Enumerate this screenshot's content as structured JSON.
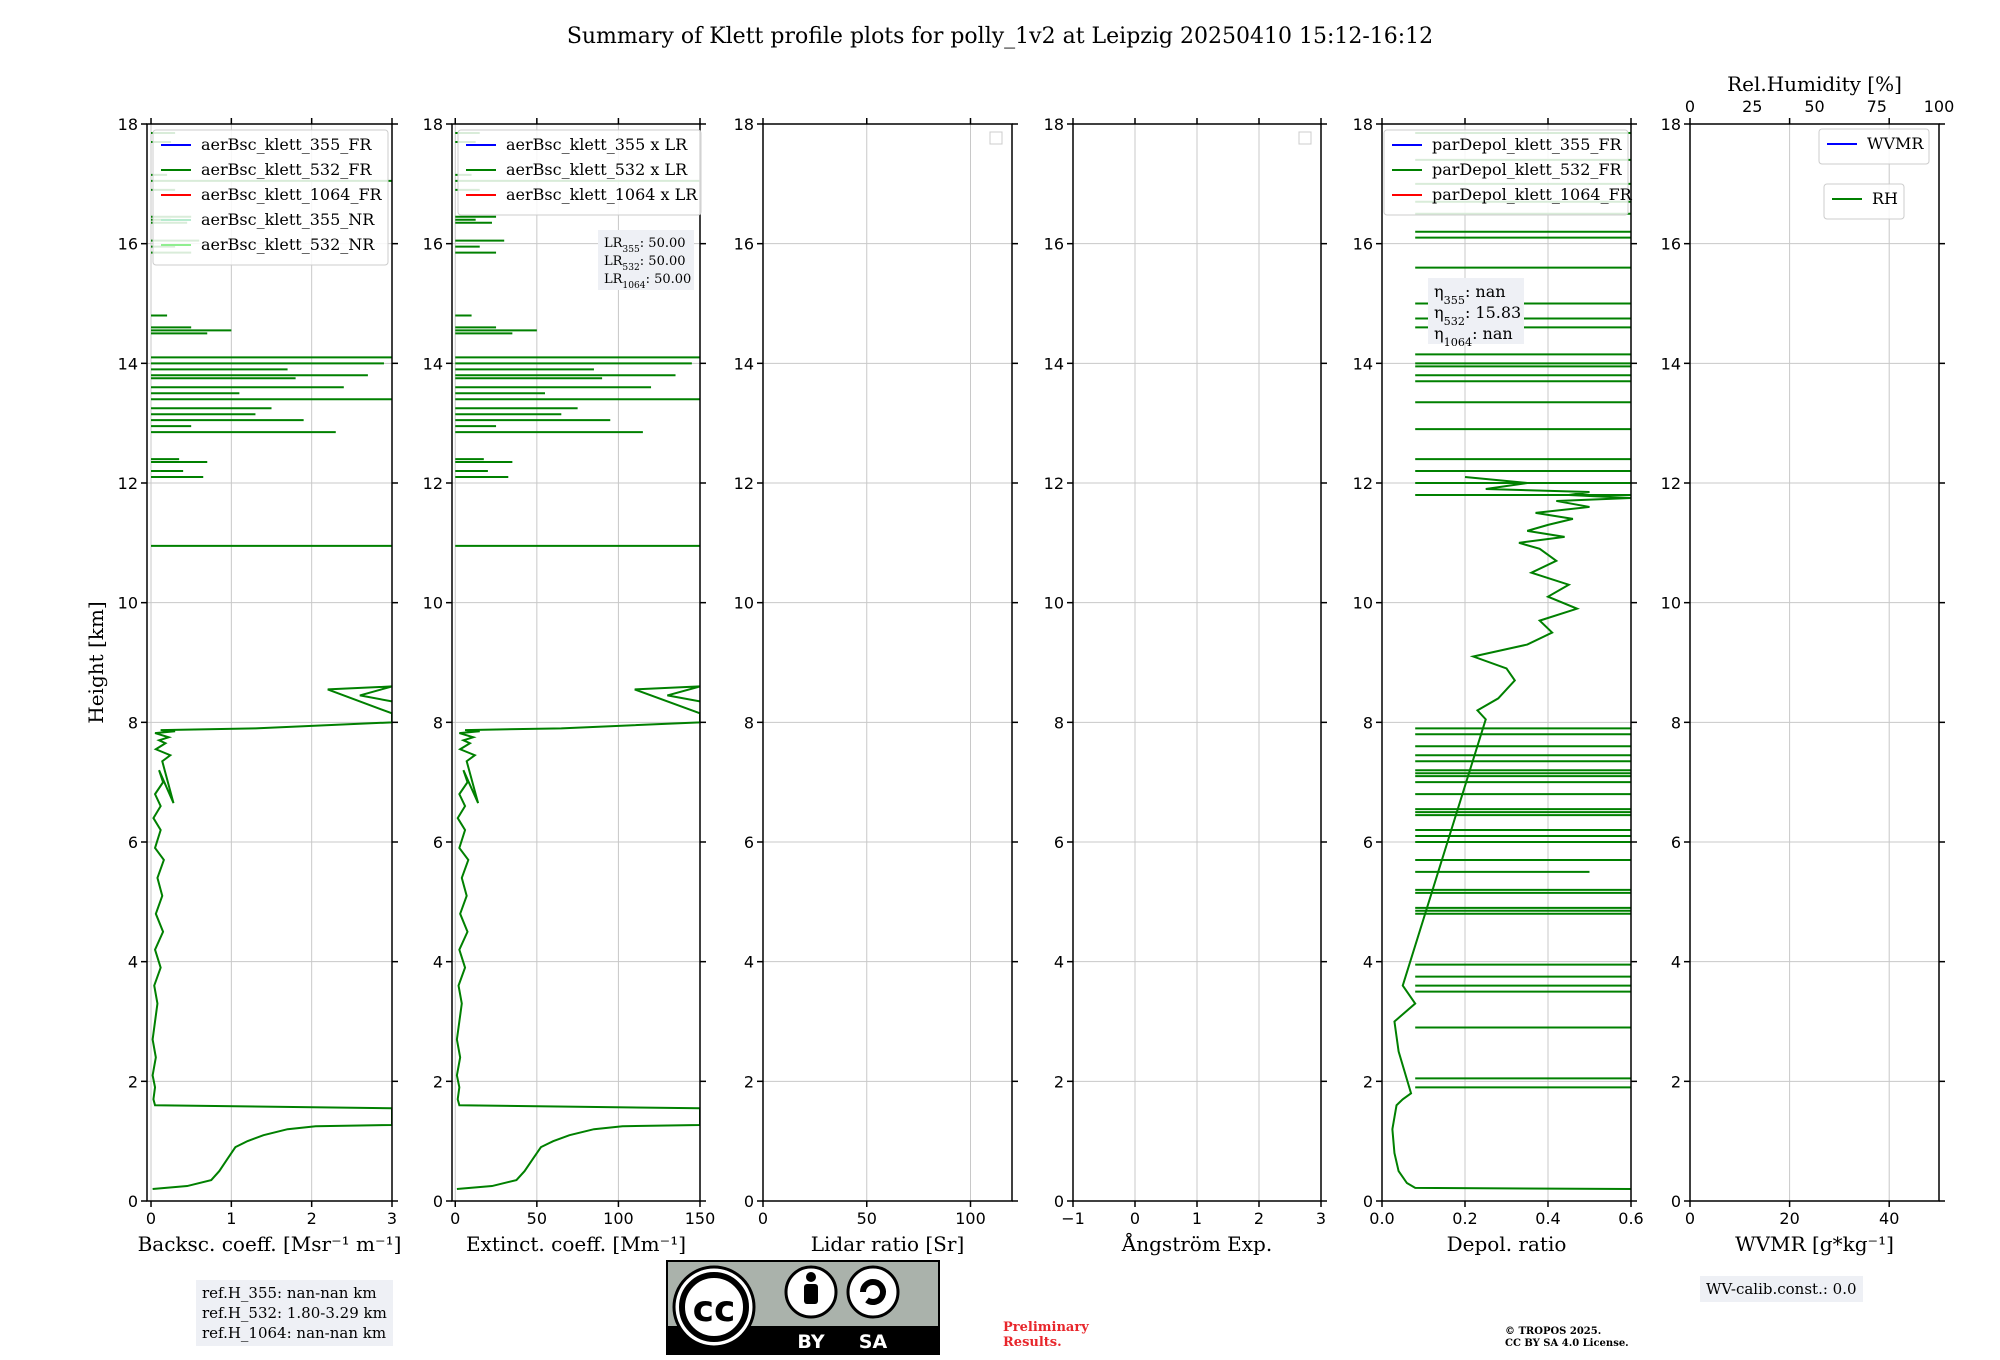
{
  "title": "Summary of Klett profile plots for polly_1v2 at Leipzig 20250410 15:12-16:12",
  "colors": {
    "blue": "#0000ff",
    "green": "#008000",
    "red": "#ff0000",
    "light_green": "#b7ebcf",
    "lighter_green": "#90ee90",
    "grid": "#c8c8c8"
  },
  "chart_data": [
    {
      "type": "line",
      "xlabel": "Backsc. coeff. [Msr⁻¹ m⁻¹]",
      "ylabel": "Height [km]",
      "xlim": [
        -0.05,
        3
      ],
      "ylim": [
        0,
        18
      ],
      "xticks": [
        0,
        1,
        2,
        3
      ],
      "yticks": [
        0,
        2,
        4,
        6,
        8,
        10,
        12,
        14,
        16,
        18
      ],
      "legend": [
        "aerBsc_klett_355_FR",
        "aerBsc_klett_532_FR",
        "aerBsc_klett_1064_FR",
        "aerBsc_klett_355_NR",
        "aerBsc_klett_532_NR"
      ],
      "legend_colors": [
        "#0000ff",
        "#008000",
        "#ff0000",
        "#b7ebcf",
        "#90ee90"
      ],
      "series": [
        {
          "name": "aerBsc_klett_532_FR",
          "color": "#008000",
          "x": [
            0.02,
            0.45,
            0.75,
            0.85,
            0.95,
            1.05,
            1.2,
            1.4,
            1.7,
            2.05,
            3.0,
            3.0,
            0.05,
            0.03,
            0.05,
            0.02,
            0.06,
            0.02,
            0.05,
            0.08,
            0.04,
            0.12,
            0.05,
            0.15,
            0.06,
            0.14,
            0.08,
            0.16,
            0.05,
            0.12,
            0.03,
            0.12,
            0.05,
            0.15,
            0.1,
            0.28,
            0.14,
            0.24,
            0.06,
            0.18,
            0.1,
            0.22,
            0.05,
            0.3,
            0.12,
            1.3,
            3.0,
            3.0,
            2.2,
            3.0,
            2.6,
            3.0
          ],
          "y": [
            0.2,
            0.25,
            0.35,
            0.5,
            0.7,
            0.9,
            1.0,
            1.1,
            1.2,
            1.25,
            1.27,
            1.55,
            1.6,
            1.7,
            1.9,
            2.1,
            2.4,
            2.7,
            3.0,
            3.3,
            3.6,
            3.9,
            4.2,
            4.5,
            4.8,
            5.1,
            5.4,
            5.7,
            5.9,
            6.2,
            6.4,
            6.6,
            6.8,
            7.0,
            7.2,
            6.65,
            7.35,
            7.45,
            7.55,
            7.65,
            7.7,
            7.75,
            7.82,
            7.85,
            7.87,
            7.9,
            8.0,
            8.15,
            8.55,
            8.6,
            8.45,
            8.35
          ]
        }
      ],
      "spikes_y": [
        10.95,
        12.1,
        12.2,
        12.35,
        12.4,
        12.85,
        12.95,
        13.05,
        13.15,
        13.25,
        13.4,
        13.5,
        13.6,
        13.75,
        13.8,
        13.9,
        14.0,
        14.1,
        14.5,
        14.55,
        14.6,
        14.8,
        15.85,
        15.95,
        16.05,
        16.35,
        16.4,
        16.45,
        16.9,
        17.05,
        17.15,
        17.7,
        17.85
      ],
      "spikes_x": [
        3.0,
        0.65,
        0.4,
        0.7,
        0.35,
        2.3,
        0.5,
        1.9,
        1.3,
        1.5,
        3.0,
        1.1,
        2.4,
        1.8,
        2.7,
        1.7,
        2.9,
        3.0,
        0.7,
        1.0,
        0.5,
        0.2,
        0.5,
        0.3,
        0.6,
        0.45,
        0.25,
        0.5,
        0.3,
        3.0,
        0.2,
        0.25,
        0.3
      ]
    },
    {
      "type": "line",
      "xlabel": "Extinct. coeff. [Mm⁻¹]",
      "xlim": [
        -2,
        150
      ],
      "ylim": [
        0,
        18
      ],
      "xticks": [
        0,
        50,
        100,
        150
      ],
      "legend": [
        "aerBsc_klett_355 x LR",
        "aerBsc_klett_532 x LR",
        "aerBsc_klett_1064 x LR"
      ],
      "legend_colors": [
        "#0000ff",
        "#008000",
        "#ff0000"
      ],
      "lr_box": [
        "LR355: 50.00",
        "LR532: 50.00",
        "LR1064: 50.00"
      ],
      "series": [
        {
          "name": "aerBsc_klett_532 x LR",
          "color": "#008000",
          "scale_of": 0,
          "factor": 50
        }
      ]
    },
    {
      "type": "line",
      "xlabel": "Lidar ratio [Sr]",
      "xlim": [
        0,
        120
      ],
      "ylim": [
        0,
        18
      ],
      "xticks": [
        0,
        50,
        100
      ],
      "series": []
    },
    {
      "type": "line",
      "xlabel": "Ångström Exp.",
      "xlim": [
        -1,
        3
      ],
      "ylim": [
        0,
        18
      ],
      "xticks": [
        -1,
        0,
        1,
        2,
        3
      ],
      "series": []
    },
    {
      "type": "line",
      "xlabel": "Depol. ratio",
      "xlim": [
        0,
        0.6
      ],
      "ylim": [
        0,
        18
      ],
      "xticks": [
        0.0,
        0.2,
        0.4,
        0.6
      ],
      "xtick_labels": [
        "0.0",
        "0.2",
        "0.4",
        "0.6"
      ],
      "legend": [
        "parDepol_klett_355_FR",
        "parDepol_klett_532_FR",
        "parDepol_klett_1064_FR"
      ],
      "legend_colors": [
        "#0000ff",
        "#008000",
        "#ff0000"
      ],
      "eta_box": [
        "η355: nan",
        "η532: 15.83",
        "η1064: nan"
      ],
      "series": [
        {
          "name": "parDepol_klett_532_FR",
          "color": "#008000",
          "x": [
            0.6,
            0.08,
            0.06,
            0.04,
            0.03,
            0.025,
            0.03,
            0.035,
            0.05,
            0.07,
            0.04,
            0.03,
            0.08,
            0.05,
            0.25,
            0.23,
            0.28,
            0.3,
            0.32,
            0.3,
            0.22,
            0.35,
            0.41,
            0.38,
            0.47,
            0.4,
            0.45,
            0.36,
            0.42,
            0.38,
            0.33,
            0.44,
            0.35,
            0.4,
            0.46,
            0.37,
            0.5,
            0.42,
            0.6,
            0.45,
            0.5,
            0.25,
            0.35,
            0.2
          ],
          "y": [
            0.2,
            0.22,
            0.3,
            0.5,
            0.8,
            1.2,
            1.4,
            1.6,
            1.7,
            1.8,
            2.5,
            3.0,
            3.3,
            3.6,
            8.05,
            8.2,
            8.4,
            8.55,
            8.7,
            8.9,
            9.1,
            9.3,
            9.5,
            9.7,
            9.9,
            10.1,
            10.3,
            10.5,
            10.7,
            10.9,
            11.0,
            11.1,
            11.2,
            11.3,
            11.4,
            11.5,
            11.6,
            11.7,
            11.75,
            11.8,
            11.85,
            11.9,
            12.0,
            12.1
          ]
        }
      ],
      "hlines_y": [
        1.9,
        2.05,
        2.9,
        3.5,
        3.6,
        3.75,
        3.95,
        4.8,
        4.85,
        4.9,
        5.15,
        5.2,
        5.5,
        5.7,
        6.0,
        6.1,
        6.2,
        6.45,
        6.5,
        6.55,
        6.8,
        7.0,
        7.1,
        7.15,
        7.2,
        7.35,
        7.45,
        7.6,
        7.8,
        7.9,
        11.8,
        12.0,
        12.2,
        12.4,
        12.9,
        13.35,
        13.7,
        13.8,
        13.95,
        14.0,
        14.15,
        14.6,
        14.75,
        15.0,
        15.6,
        16.1,
        16.2,
        16.5,
        16.7,
        17.0,
        17.4,
        17.85
      ],
      "hlines_x": [
        0.6,
        0.6,
        0.6,
        0.6,
        0.6,
        0.6,
        0.6,
        0.6,
        0.6,
        0.6,
        0.6,
        0.6,
        0.5,
        0.6,
        0.6,
        0.6,
        0.6,
        0.6,
        0.6,
        0.6,
        0.6,
        0.6,
        0.6,
        0.6,
        0.6,
        0.6,
        0.6,
        0.6,
        0.6,
        0.6,
        0.6,
        0.6,
        0.6,
        0.6,
        0.6,
        0.6,
        0.6,
        0.6,
        0.6,
        0.6,
        0.6,
        0.6,
        0.6,
        0.6,
        0.6,
        0.6,
        0.6,
        0.6,
        0.6,
        0.6,
        0.6,
        0.6
      ]
    },
    {
      "type": "line",
      "xlabel": "WVMR [g*kg⁻¹]",
      "xlim": [
        0,
        50
      ],
      "ylim": [
        0,
        18
      ],
      "xticks": [
        0,
        20,
        40
      ],
      "top_axis": {
        "label": "Rel.Humidity [%]",
        "lim": [
          0,
          100
        ],
        "ticks": [
          0,
          25,
          50,
          75,
          100
        ]
      },
      "legend": [
        "WVMR"
      ],
      "legend_colors": [
        "#0000ff"
      ],
      "legend2": [
        "RH"
      ],
      "legend2_colors": [
        "#008000"
      ],
      "series": []
    }
  ],
  "ref_heights": [
    "ref.H_355: nan-nan km",
    "ref.H_532: 1.80-3.29 km",
    "ref.H_1064: nan-nan km"
  ],
  "wv_calib": "WV-calib.const.: 0.0",
  "license_badge": {
    "by": "BY",
    "sa": "SA",
    "cc": "cc"
  },
  "preliminary": [
    "Preliminary",
    "Results."
  ],
  "copyright": [
    "© TROPOS 2025.",
    "CC BY SA 4.0 License."
  ]
}
